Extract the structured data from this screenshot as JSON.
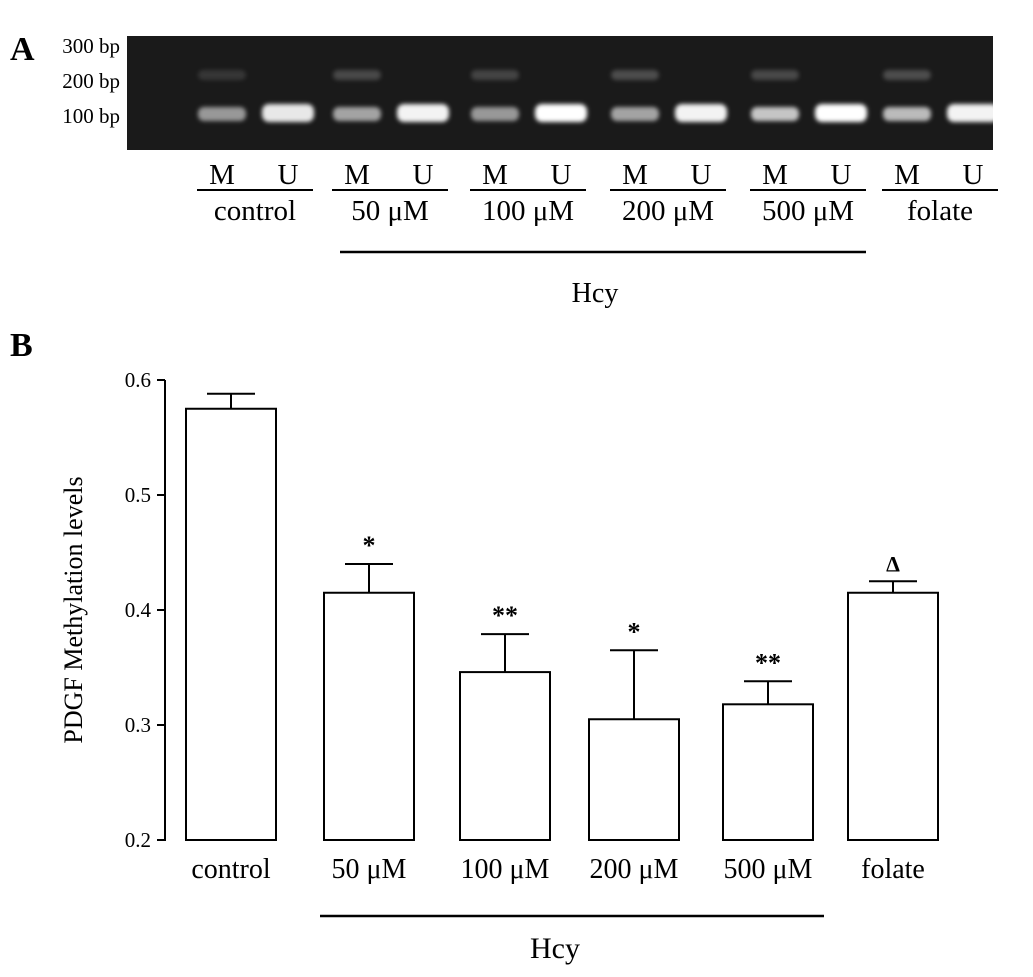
{
  "panel_a": {
    "letter": "A",
    "ladder": [
      "300 bp",
      "200 bp",
      "100 bp"
    ],
    "lane_pair_labels": [
      "M",
      "U"
    ],
    "groups": [
      "control",
      "50 μM",
      "100 μM",
      "200 μM",
      "500 μM",
      "folate"
    ],
    "treatment_label": "Hcy",
    "gel_colors": {
      "background": "#1a1a1a",
      "band": "#ffffff"
    },
    "band_intensity": {
      "M_100bp": [
        0.55,
        0.6,
        0.55,
        0.6,
        0.75,
        0.7
      ],
      "U_100bp": [
        0.9,
        0.95,
        1.0,
        0.95,
        1.0,
        0.95
      ],
      "M_200bp": [
        0.12,
        0.2,
        0.18,
        0.22,
        0.2,
        0.22
      ]
    }
  },
  "panel_b": {
    "letter": "B",
    "treatment_label": "Hcy"
  },
  "chart_data": {
    "type": "bar",
    "categories": [
      "control",
      "50 μM",
      "100 μM",
      "200 μM",
      "500 μM",
      "folate"
    ],
    "values": [
      0.575,
      0.415,
      0.346,
      0.305,
      0.318,
      0.415
    ],
    "error_upper": [
      0.588,
      0.44,
      0.379,
      0.365,
      0.338,
      0.425
    ],
    "annotations": [
      "",
      "*",
      "**",
      "*",
      "**",
      "Δ"
    ],
    "ylabel": "PDGF Methylation levels",
    "xlabel": "",
    "title": "",
    "ylim": [
      0.2,
      0.6
    ],
    "yticks": [
      0.2,
      0.3,
      0.4,
      0.5,
      0.6
    ],
    "ytick_labels": [
      "0.2",
      "0.3",
      "0.4",
      "0.5",
      "0.6"
    ],
    "grid": false,
    "bar_fill": "#ffffff",
    "bar_stroke": "#000000"
  }
}
